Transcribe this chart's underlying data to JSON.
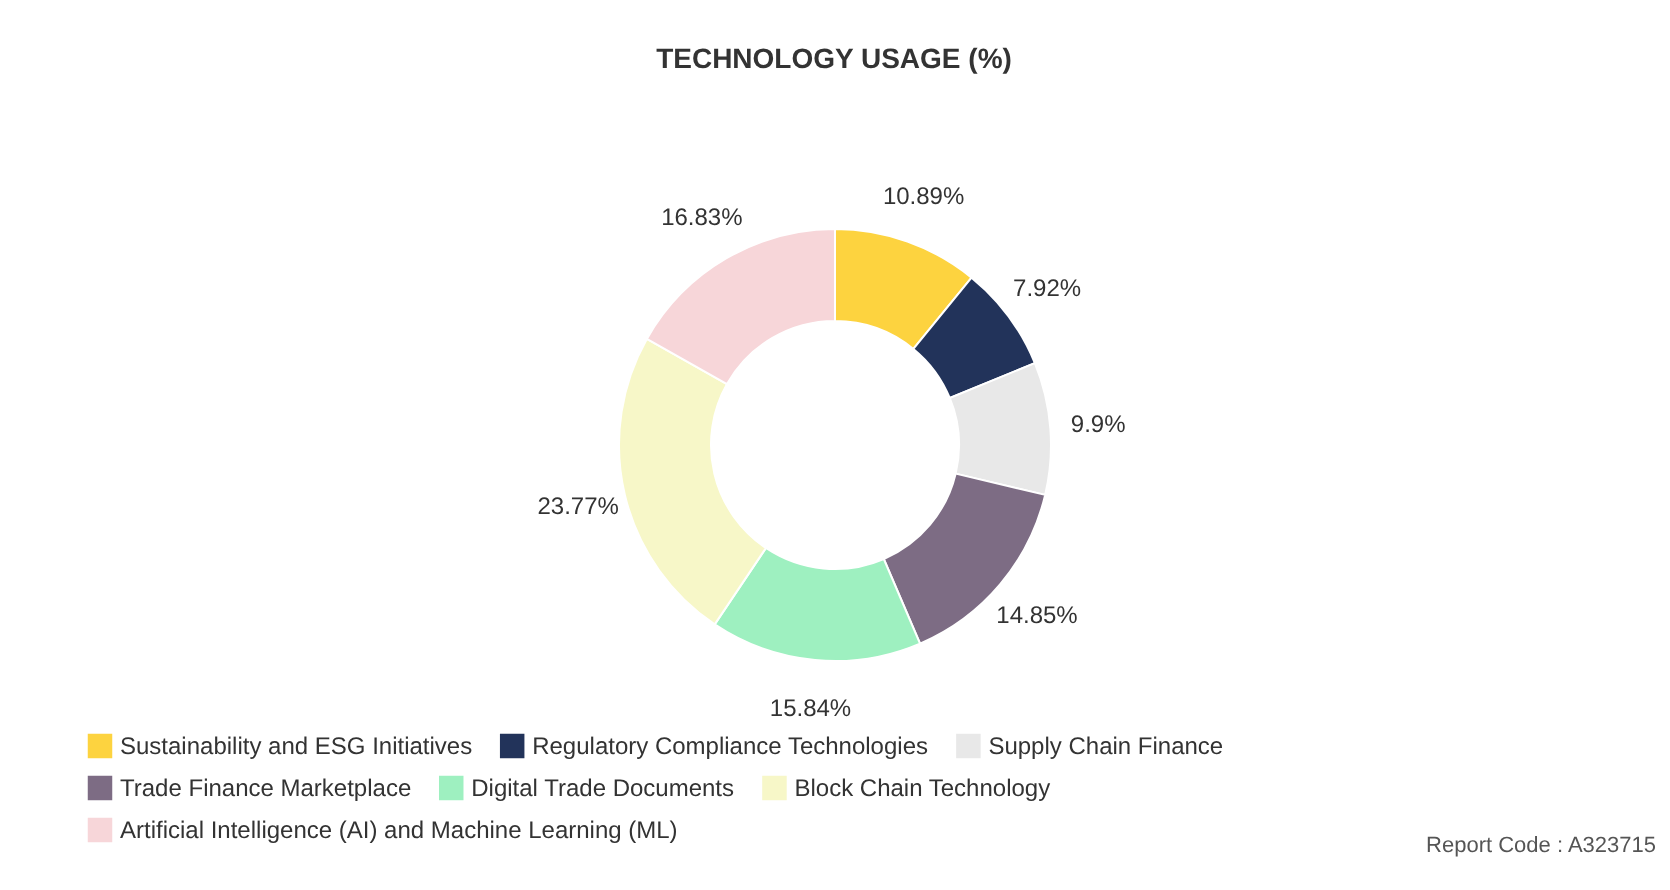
{
  "chart_data": {
    "type": "donut",
    "title": "TECHNOLOGY USAGE (%)",
    "categories": [
      "Sustainability and ESG Initiatives",
      "Regulatory Compliance Technologies",
      "Supply Chain Finance",
      "Trade Finance Marketplace",
      "Digital Trade Documents",
      "Block Chain Technology",
      "Artificial Intelligence (AI) and Machine Learning (ML)"
    ],
    "values": [
      10.89,
      7.92,
      9.9,
      14.85,
      15.84,
      23.77,
      16.83
    ],
    "colors": [
      "#fdd33f",
      "#22335a",
      "#e8e8e8",
      "#7d6c84",
      "#9ef0c0",
      "#f7f7c8",
      "#f7d6d9"
    ],
    "value_labels": [
      "10.89%",
      "7.92%",
      "9.9%",
      "14.85%",
      "15.84%",
      "23.77%",
      "16.83%"
    ],
    "legend": "bottom",
    "annotations": [
      "Report Code : A323715"
    ]
  }
}
